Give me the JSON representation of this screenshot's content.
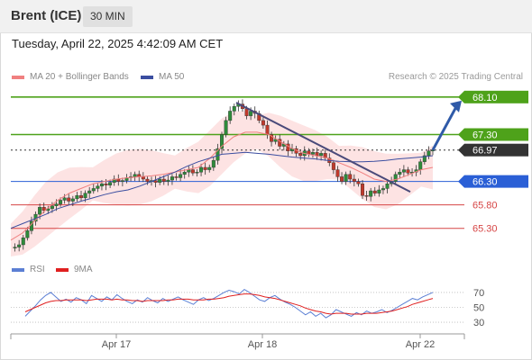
{
  "header": {
    "title": "Brent (ICE)",
    "timeframe": "30 MIN"
  },
  "datetime": "Tuesday, April 22, 2025 4:42:09 AM CET",
  "legend": {
    "ma20_label": "MA 20 + Bollinger Bands",
    "ma50_label": "MA 50",
    "rsi_label": "RSI",
    "rsi_ma_label": "9MA",
    "credit": "Research © 2025 Trading Central"
  },
  "colors": {
    "resistance": "#4ea21a",
    "current": "#333333",
    "support_pivot": "#2a5fd6",
    "support": "#d64545",
    "ma20": "#f08080",
    "ma50": "#3b4ea0",
    "bollinger": "#fde0e0",
    "up": "#2e8b3a",
    "down": "#c0392b",
    "rsi": "#5b7fd4",
    "rsi_ma": "#e02020",
    "arrow": "#2f5aa8"
  },
  "chart_data": [
    {
      "type": "candlestick",
      "instrument": "Brent (ICE)",
      "interval": "30 MIN",
      "x_ticks": [
        "Apr 17",
        "Apr 18",
        "Apr 22"
      ],
      "ylim": [
        64.7,
        68.25
      ],
      "levels": [
        {
          "label": "68.10",
          "value": 68.1,
          "kind": "resistance"
        },
        {
          "label": "67.30",
          "value": 67.3,
          "kind": "resistance"
        },
        {
          "label": "66.97",
          "value": 66.97,
          "kind": "current"
        },
        {
          "label": "66.30",
          "value": 66.3,
          "kind": "pivot"
        },
        {
          "label": "65.80",
          "value": 65.8,
          "kind": "support"
        },
        {
          "label": "65.30",
          "value": 65.3,
          "kind": "support"
        }
      ],
      "close_series": [
        64.88,
        64.9,
        64.95,
        65.1,
        65.25,
        65.45,
        65.6,
        65.75,
        65.68,
        65.72,
        65.78,
        65.82,
        65.9,
        65.95,
        65.88,
        65.93,
        66.0,
        65.95,
        66.05,
        66.1,
        66.15,
        66.2,
        66.25,
        66.22,
        66.28,
        66.35,
        66.3,
        66.32,
        66.38,
        66.4,
        66.45,
        66.4,
        66.35,
        66.3,
        66.32,
        66.28,
        66.35,
        66.3,
        66.33,
        66.4,
        66.38,
        66.45,
        66.5,
        66.55,
        66.48,
        66.5,
        66.6,
        66.55,
        66.6,
        66.75,
        67.0,
        67.3,
        67.6,
        67.8,
        67.9,
        67.95,
        67.85,
        67.7,
        67.8,
        67.75,
        67.6,
        67.5,
        67.3,
        67.15,
        67.2,
        67.05,
        67.1,
        66.95,
        67.0,
        66.9,
        66.85,
        66.95,
        66.88,
        66.92,
        66.85,
        66.9,
        66.8,
        66.7,
        66.55,
        66.4,
        66.3,
        66.45,
        66.35,
        66.3,
        66.25,
        66.0,
        65.98,
        66.1,
        66.05,
        66.12,
        66.15,
        66.25,
        66.3,
        66.45,
        66.5,
        66.55,
        66.48,
        66.5,
        66.55,
        66.72,
        66.85,
        66.95,
        66.97
      ],
      "ma20_points": [
        65.05,
        65.2,
        65.45,
        65.7,
        65.9,
        66.05,
        66.15,
        66.25,
        66.3,
        66.35,
        66.38,
        66.4,
        66.42,
        66.45,
        66.5,
        66.55,
        66.6,
        66.8,
        67.05,
        67.25,
        67.35,
        67.35,
        67.3,
        67.15,
        67.0,
        66.9,
        66.85,
        66.8,
        66.7,
        66.6,
        66.48,
        66.35,
        66.3,
        66.35,
        66.45,
        66.55,
        66.6
      ],
      "ma50_points": [
        65.3,
        65.4,
        65.5,
        65.6,
        65.72,
        65.8,
        65.88,
        65.95,
        66.02,
        66.08,
        66.12,
        66.2,
        66.3,
        66.4,
        66.5,
        66.62,
        66.72,
        66.8,
        66.88,
        66.9,
        66.92,
        66.9,
        66.88,
        66.85,
        66.82,
        66.8,
        66.78,
        66.75,
        66.73,
        66.72,
        66.72,
        66.73,
        66.75,
        66.78,
        66.8,
        66.82,
        66.85
      ],
      "trendline": {
        "start": 67.98,
        "end": 66.08
      },
      "forecast_target": 68.1
    },
    {
      "type": "line",
      "title": "RSI",
      "y_ticks": [
        70,
        50,
        30
      ],
      "ylim": [
        18,
        82
      ],
      "series": [
        {
          "name": "RSI",
          "values": [
            38,
            45,
            52,
            60,
            66,
            70,
            64,
            58,
            61,
            57,
            63,
            60,
            55,
            66,
            62,
            58,
            64,
            60,
            67,
            62,
            58,
            55,
            60,
            57,
            63,
            59,
            56,
            62,
            58,
            61,
            64,
            60,
            57,
            54,
            60,
            63,
            59,
            62,
            66,
            70,
            73,
            71,
            68,
            74,
            70,
            65,
            60,
            58,
            63,
            66,
            61,
            57,
            54,
            50,
            45,
            40,
            44,
            38,
            42,
            36,
            40,
            47,
            44,
            41,
            38,
            43,
            40,
            45,
            42,
            44,
            47,
            43,
            46,
            50,
            54,
            58,
            62,
            60,
            64,
            67,
            70
          ]
        },
        {
          "name": "9MA",
          "values": [
            44,
            47,
            50,
            53,
            56,
            58,
            59,
            59,
            60,
            60,
            60,
            60,
            59,
            60,
            61,
            61,
            61,
            60,
            61,
            60,
            60,
            59,
            59,
            58,
            59,
            59,
            59,
            59,
            60,
            60,
            61,
            61,
            61,
            60,
            60,
            60,
            61,
            61,
            62,
            63,
            65,
            66,
            67,
            68,
            68,
            67,
            66,
            64,
            63,
            62,
            60,
            58,
            56,
            54,
            52,
            49,
            47,
            45,
            44,
            42,
            41,
            42,
            42,
            42,
            41,
            41,
            41,
            42,
            42,
            42,
            43,
            44,
            45,
            47,
            49,
            51,
            54,
            56,
            58,
            60,
            62
          ]
        }
      ]
    }
  ]
}
